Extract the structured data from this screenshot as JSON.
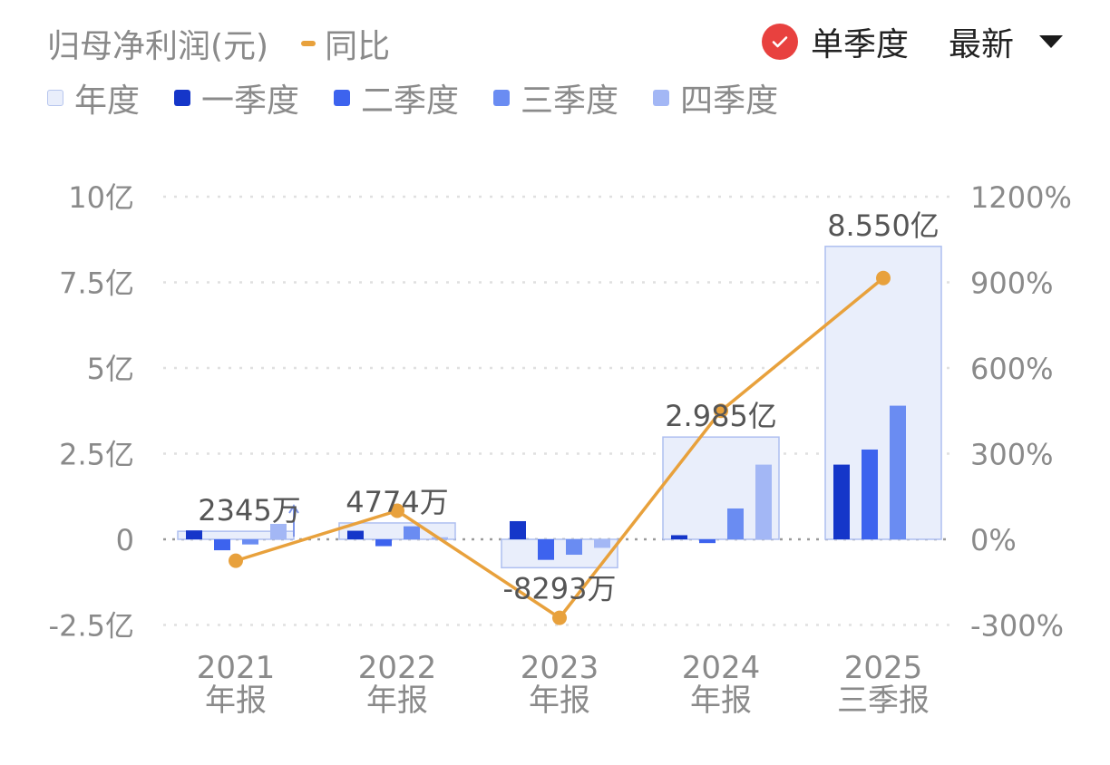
{
  "header": {
    "title": "归母净利润(元)",
    "yoy_label": "同比",
    "toggle_label": "单季度",
    "period_select": "最新"
  },
  "legend": [
    {
      "label": "年度",
      "color": "#e9eefb",
      "border": "#b7c6ee"
    },
    {
      "label": "一季度",
      "color": "#1536c9",
      "border": "#1536c9"
    },
    {
      "label": "二季度",
      "color": "#3d63ee",
      "border": "#3d63ee"
    },
    {
      "label": "三季度",
      "color": "#6a8cf2",
      "border": "#6a8cf2"
    },
    {
      "label": "四季度",
      "color": "#a3b7f5",
      "border": "#a3b7f5"
    }
  ],
  "colors": {
    "yoy_line": "#e8a13c",
    "annual_fill": "#e9eefb",
    "annual_border": "#aebff0",
    "grid": "#e0e0e0",
    "zero": "#9a9a9a",
    "axis_text": "#8a8a8a"
  },
  "chart_data": {
    "type": "bar",
    "categories": [
      "2021\n年报",
      "2022\n年报",
      "2023\n年报",
      "2024\n年报",
      "2025\n三季报"
    ],
    "y_left": {
      "unit": "亿",
      "ticks": [
        -2.5,
        0,
        2.5,
        5,
        7.5,
        10
      ],
      "tick_labels": [
        "-2.5亿",
        "0",
        "2.5亿",
        "5亿",
        "7.5亿",
        "10亿"
      ],
      "ylim": [
        -2.5,
        10
      ]
    },
    "y_right": {
      "ticks": [
        -300,
        0,
        300,
        600,
        900,
        1200
      ],
      "tick_labels": [
        "-300%",
        "0%",
        "300%",
        "600%",
        "900%",
        "1200%"
      ],
      "ylim": [
        -300,
        1200
      ]
    },
    "annual": {
      "values": [
        0.2345,
        0.4774,
        -0.8293,
        2.985,
        8.55
      ],
      "labels": [
        "2345万",
        "4774万",
        "-8293万",
        "2.985亿",
        "8.550亿"
      ]
    },
    "series": [
      {
        "name": "一季度",
        "values": [
          0.26,
          0.25,
          0.53,
          0.12,
          2.18
        ]
      },
      {
        "name": "二季度",
        "values": [
          -0.32,
          -0.2,
          -0.6,
          -0.11,
          2.62
        ]
      },
      {
        "name": "三季度",
        "values": [
          -0.15,
          0.38,
          -0.45,
          0.9,
          3.9
        ]
      },
      {
        "name": "四季度",
        "values": [
          0.45,
          0.06,
          -0.25,
          2.18,
          null
        ]
      }
    ],
    "yoy": {
      "name": "同比",
      "values": [
        -75,
        100,
        -275,
        450,
        915
      ]
    },
    "grid": true
  }
}
